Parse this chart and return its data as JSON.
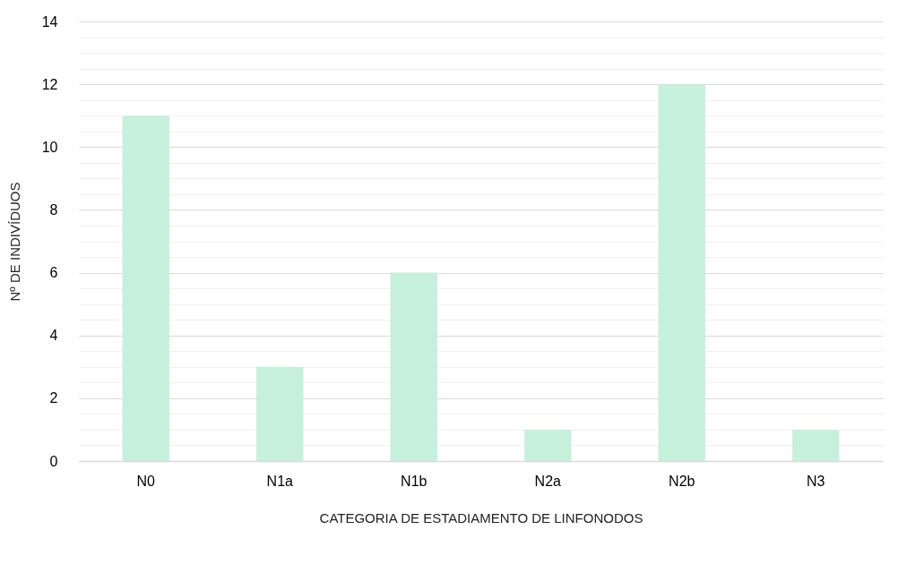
{
  "chart_data": {
    "type": "bar",
    "xlabel": "CATEGORIA DE ESTADIAMENTO DE LINFONODOS",
    "ylabel": "Nº DE INDIVÍDUOS",
    "categories": [
      "N0",
      "N1a",
      "N1b",
      "N2a",
      "N2b",
      "N3"
    ],
    "values": [
      11,
      3,
      6,
      1,
      12,
      1
    ],
    "color": "#c6efdc",
    "ylim": [
      0,
      14
    ],
    "yticks": [
      0,
      {
        "value": 0.5,
        "label": null
      },
      {
        "value": 1,
        "label": null
      },
      {
        "value": 1.5,
        "label": null
      },
      2,
      {
        "value": 2.5,
        "label": null
      },
      {
        "value": 3,
        "label": null
      },
      {
        "value": 3.5,
        "label": null
      },
      4,
      {
        "value": 4.5,
        "label": null
      },
      {
        "value": 5,
        "label": null
      },
      {
        "value": 5.5,
        "label": null
      },
      6,
      {
        "value": 6.5,
        "label": null
      },
      {
        "value": 7,
        "label": null
      },
      {
        "value": 7.5,
        "label": null
      },
      8,
      {
        "value": 8.5,
        "label": null
      },
      {
        "value": 9,
        "label": null
      },
      {
        "value": 9.5,
        "label": null
      },
      10,
      {
        "value": 10.5,
        "label": null
      },
      {
        "value": 11,
        "label": null
      },
      {
        "value": 11.5,
        "label": null
      },
      12,
      {
        "value": 12.5,
        "label": null
      },
      {
        "value": 13,
        "label": null
      },
      {
        "value": 13.5,
        "label": null
      },
      14
    ],
    "grid": "y"
  }
}
